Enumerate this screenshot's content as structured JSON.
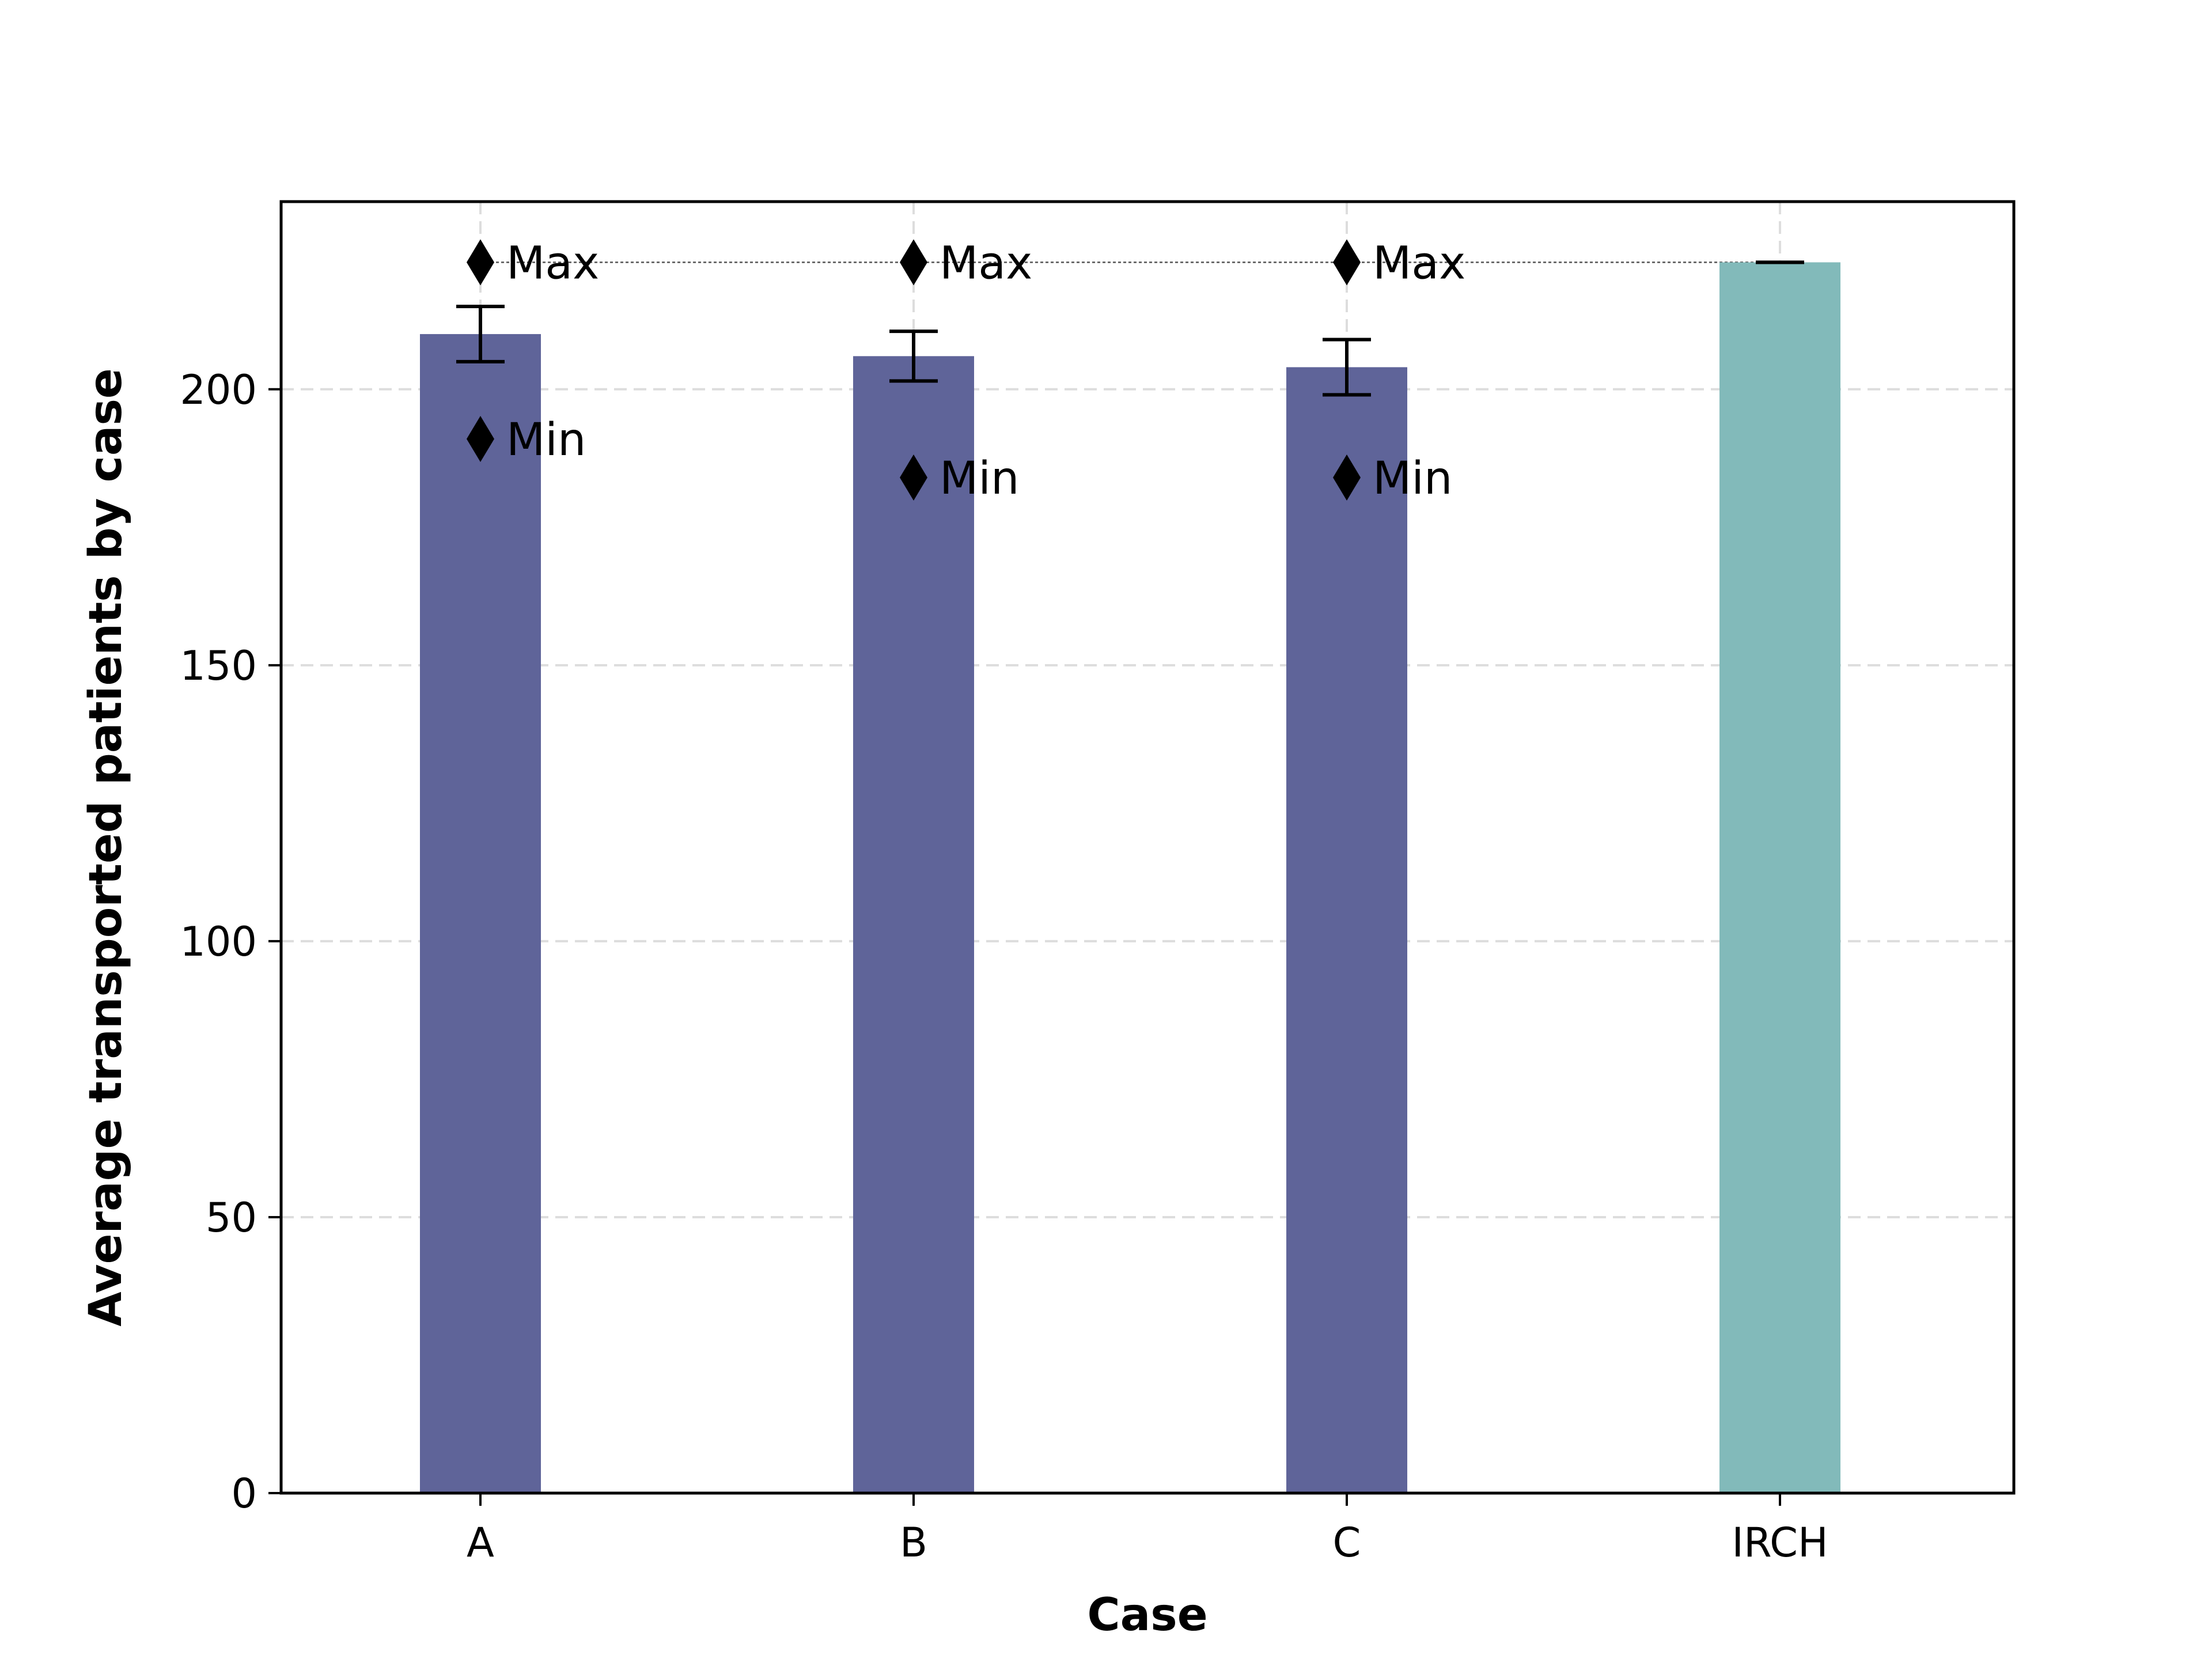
{
  "chart_data": {
    "type": "bar",
    "title": "",
    "xlabel": "Case",
    "ylabel": "Average transported patients by case",
    "categories": [
      "A",
      "B",
      "C",
      "IRCH"
    ],
    "values": [
      210,
      206,
      204,
      223
    ],
    "error": [
      5,
      4.5,
      5,
      0
    ],
    "max": [
      223,
      223,
      223,
      null
    ],
    "min": [
      191,
      184,
      184,
      null
    ],
    "max_label": "Max",
    "min_label": "Min",
    "reference_line": 223,
    "ylim": [
      0,
      234
    ],
    "yticks": [
      0,
      50,
      100,
      150,
      200
    ],
    "grid": true,
    "bar_colors": [
      "#5f6499",
      "#5f6499",
      "#5f6499",
      "#82baba"
    ]
  }
}
